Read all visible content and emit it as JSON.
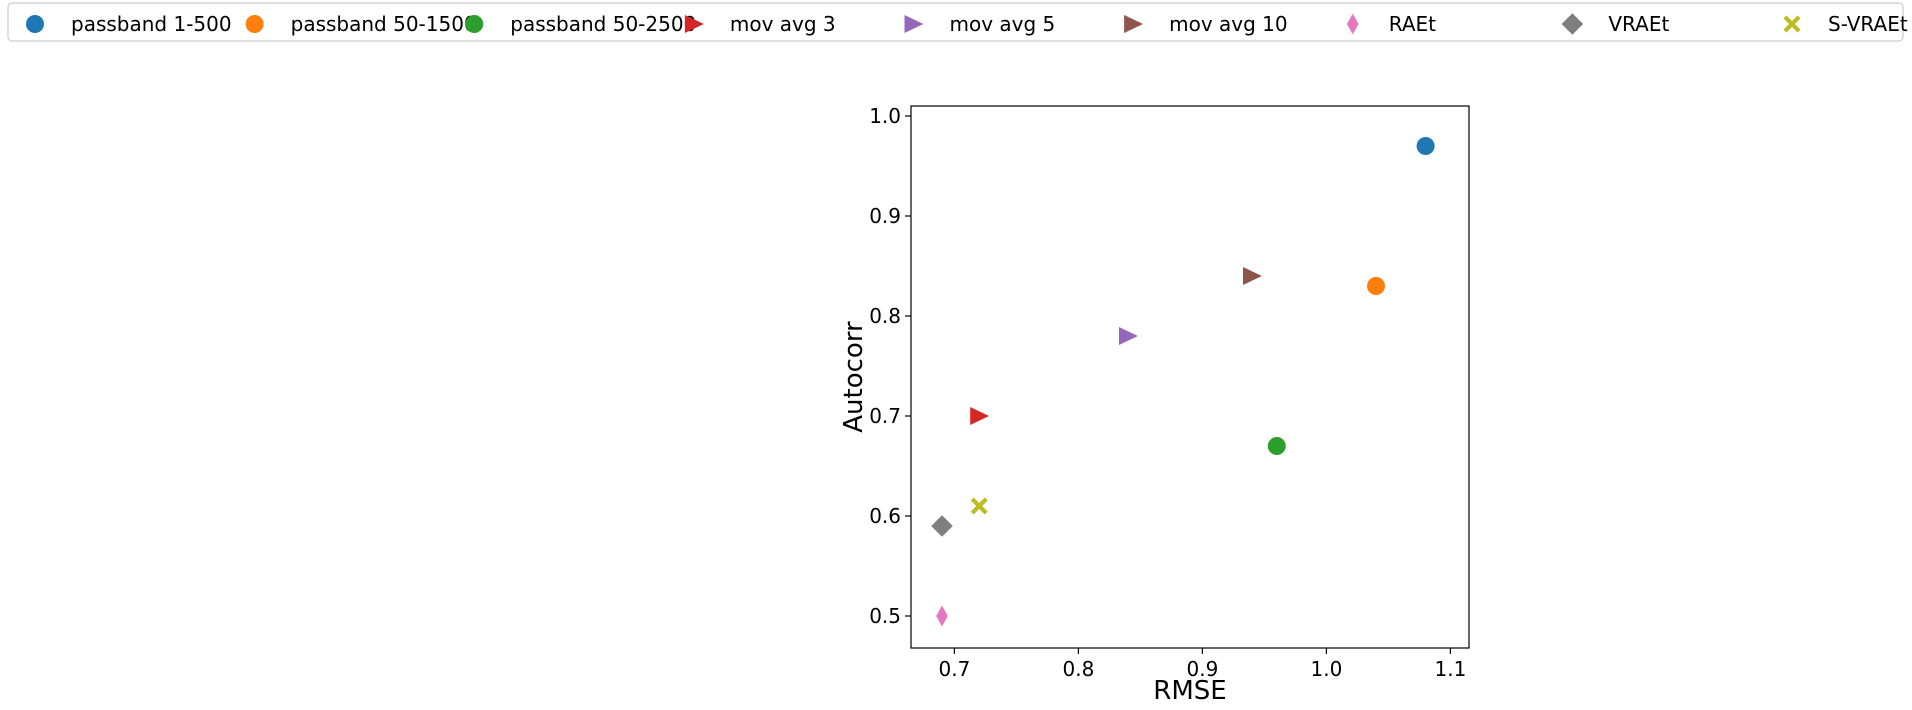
{
  "chart_data": {
    "type": "scatter",
    "title": "",
    "xlabel": "RMSE",
    "ylabel": "Autocorr",
    "xlim": [
      0.665,
      1.115
    ],
    "ylim": [
      0.468,
      1.01
    ],
    "x_ticks": [
      0.7,
      0.8,
      0.9,
      1.0,
      1.1
    ],
    "y_ticks": [
      0.5,
      0.6,
      0.7,
      0.8,
      0.9,
      1.0
    ],
    "x_tick_labels": [
      "0.7",
      "0.8",
      "0.9",
      "1.0",
      "1.1"
    ],
    "y_tick_labels": [
      "0.5",
      "0.6",
      "0.7",
      "0.8",
      "0.9",
      "1.0"
    ],
    "grid": false,
    "legend_placement": "top, outside, single row",
    "series": [
      {
        "name": "passband 1-500",
        "marker": "circle",
        "color": "#1f77b4",
        "x": 1.08,
        "y": 0.97
      },
      {
        "name": "passband 50-1500",
        "marker": "circle",
        "color": "#ff7f0e",
        "x": 1.04,
        "y": 0.83
      },
      {
        "name": "passband 50-2500",
        "marker": "circle",
        "color": "#2ca02c",
        "x": 0.96,
        "y": 0.67
      },
      {
        "name": "mov avg 3",
        "marker": "triangle-right",
        "color": "#d62728",
        "x": 0.72,
        "y": 0.7
      },
      {
        "name": "mov avg 5",
        "marker": "triangle-right",
        "color": "#9467bd",
        "x": 0.84,
        "y": 0.78
      },
      {
        "name": "mov avg 10",
        "marker": "triangle-right",
        "color": "#8c564b",
        "x": 0.94,
        "y": 0.84
      },
      {
        "name": "RAEt",
        "marker": "thin-diamond",
        "color": "#e377c2",
        "x": 0.69,
        "y": 0.5
      },
      {
        "name": "VRAEt",
        "marker": "diamond",
        "color": "#7f7f7f",
        "x": 0.69,
        "y": 0.59
      },
      {
        "name": "S-VRAEt",
        "marker": "x-filled",
        "color": "#bcbd22",
        "x": 0.72,
        "y": 0.61
      }
    ]
  }
}
